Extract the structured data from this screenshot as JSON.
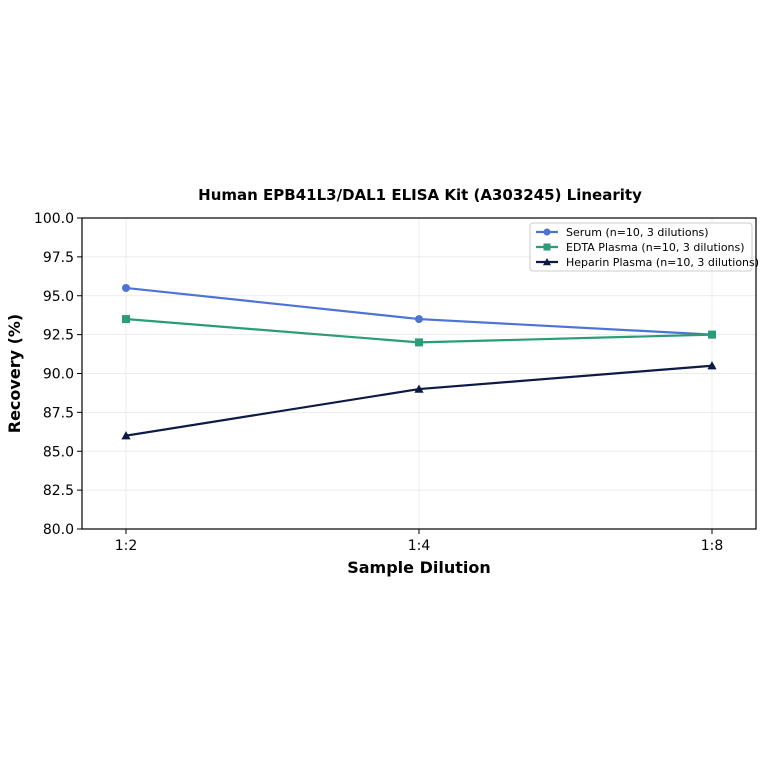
{
  "chart_data": {
    "type": "line",
    "title": "Human EPB41L3/DAL1 ELISA Kit (A303245) Linearity",
    "xlabel": "Sample Dilution",
    "ylabel": "Recovery (%)",
    "categories": [
      "1:2",
      "1:4",
      "1:8"
    ],
    "ylim": [
      80.0,
      100.0
    ],
    "yticks": [
      "80.0",
      "82.5",
      "85.0",
      "87.5",
      "90.0",
      "92.5",
      "95.0",
      "97.5",
      "100.0"
    ],
    "grid": true,
    "legend_position": "top-right",
    "series": [
      {
        "name": "Serum (n=10, 3 dilutions)",
        "values": [
          95.5,
          93.5,
          92.5
        ],
        "color": "#4e73d6",
        "marker": "circle"
      },
      {
        "name": "EDTA Plasma (n=10, 3 dilutions)",
        "values": [
          93.5,
          92.0,
          92.5
        ],
        "color": "#2a9d76",
        "marker": "square"
      },
      {
        "name": "Heparin Plasma (n=10, 3 dilutions)",
        "values": [
          86.0,
          89.0,
          90.5
        ],
        "color": "#0d1a45",
        "marker": "triangle"
      }
    ]
  }
}
